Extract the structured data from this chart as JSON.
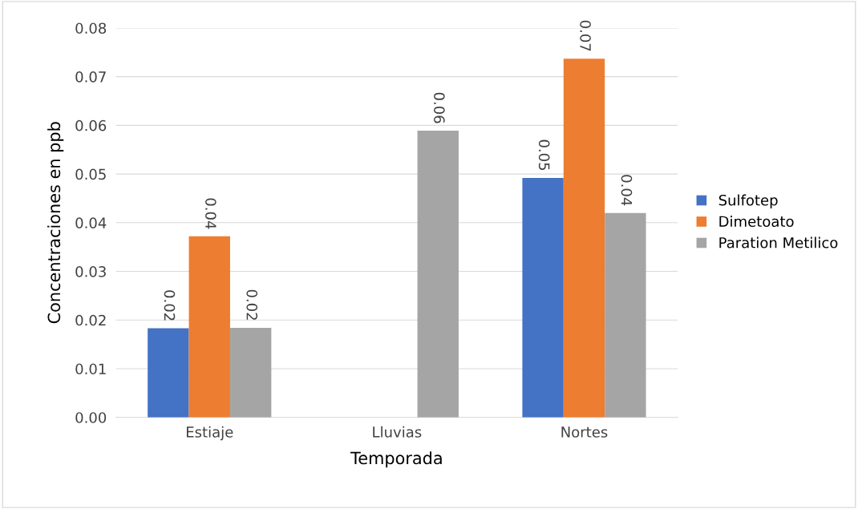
{
  "chart_data": {
    "type": "bar",
    "xlabel": "Temporada",
    "ylabel": "Concentraciones en ppb",
    "categories": [
      "Estiaje",
      "Lluvias",
      "Nortes"
    ],
    "series": [
      {
        "name": "Sulfotep",
        "color": "#4472c4",
        "values": [
          0.0183,
          null,
          0.0492
        ],
        "value_labels": [
          "0.02",
          null,
          "0.05"
        ]
      },
      {
        "name": "Dimetoato",
        "color": "#ed7d31",
        "values": [
          0.0372,
          null,
          0.0737
        ],
        "value_labels": [
          "0.04",
          null,
          "0.07"
        ]
      },
      {
        "name": "Paration Metilico",
        "color": "#a5a5a5",
        "values": [
          0.0184,
          0.0589,
          0.042
        ],
        "value_labels": [
          "0.02",
          "0.06",
          "0.04"
        ]
      }
    ],
    "ylim": [
      0,
      0.08
    ],
    "yticks": [
      {
        "value": 0,
        "label": "0.00"
      },
      {
        "value": 0.01,
        "label": "0.01"
      },
      {
        "value": 0.02,
        "label": "0.02"
      },
      {
        "value": 0.03,
        "label": "0.03"
      },
      {
        "value": 0.04,
        "label": "0.04"
      },
      {
        "value": 0.05,
        "label": "0.05"
      },
      {
        "value": 0.06,
        "label": "0.06"
      },
      {
        "value": 0.07,
        "label": "0.07"
      },
      {
        "value": 0.08,
        "label": "0.08"
      }
    ],
    "grid": "y",
    "legend": "right"
  }
}
